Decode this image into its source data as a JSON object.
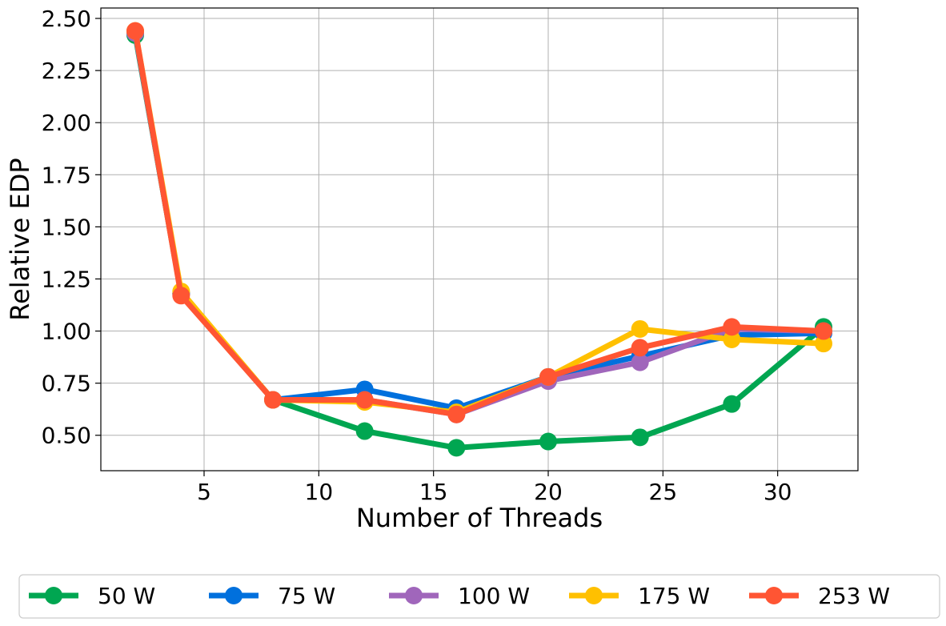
{
  "chart_data": {
    "type": "line",
    "title": "",
    "xlabel": "Number of Threads",
    "ylabel": "Relative EDP",
    "xlim": [
      0.5,
      33.5
    ],
    "ylim": [
      0.33,
      2.55
    ],
    "x_ticks": [
      5,
      10,
      15,
      20,
      25,
      30
    ],
    "x_tick_labels": [
      "5",
      "10",
      "15",
      "20",
      "25",
      "30"
    ],
    "y_ticks": [
      0.5,
      0.75,
      1.0,
      1.25,
      1.5,
      1.75,
      2.0,
      2.25,
      2.5
    ],
    "y_tick_labels": [
      "0.50",
      "0.75",
      "1.00",
      "1.25",
      "1.50",
      "1.75",
      "2.00",
      "2.25",
      "2.50"
    ],
    "grid": true,
    "legend_position": "bottom, outside plot, single row",
    "x": [
      2,
      4,
      8,
      12,
      16,
      20,
      24,
      28,
      32
    ],
    "series": [
      {
        "name": "50 W",
        "color": "#00a651",
        "values": [
          2.42,
          1.18,
          0.67,
          0.52,
          0.44,
          0.47,
          0.49,
          0.65,
          1.02
        ]
      },
      {
        "name": "75 W",
        "color": "#0070dd",
        "values": [
          2.43,
          1.18,
          0.67,
          0.72,
          0.63,
          0.78,
          0.88,
          0.98,
          0.99
        ]
      },
      {
        "name": "100 W",
        "color": "#a066bb",
        "values": [
          2.43,
          1.18,
          0.67,
          0.67,
          0.6,
          0.76,
          0.85,
          1.01,
          1.0
        ]
      },
      {
        "name": "175 W",
        "color": "#ffc000",
        "values": [
          2.44,
          1.19,
          0.67,
          0.66,
          0.61,
          0.78,
          1.01,
          0.96,
          0.94
        ]
      },
      {
        "name": "253 W",
        "color": "#ff5533",
        "values": [
          2.44,
          1.17,
          0.67,
          0.67,
          0.6,
          0.78,
          0.92,
          1.02,
          1.0
        ]
      }
    ]
  }
}
